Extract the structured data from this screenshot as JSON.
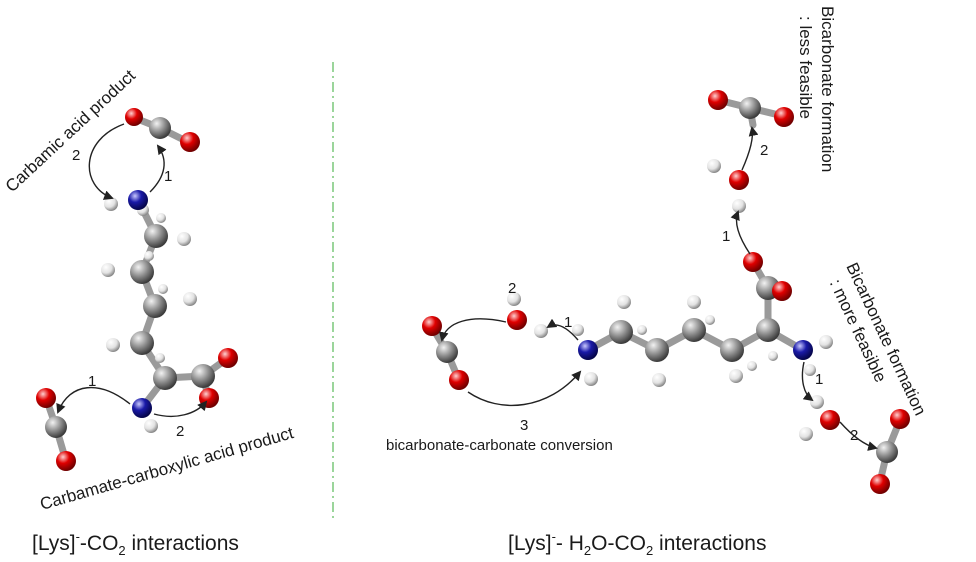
{
  "left": {
    "carbamic_label": "Carbamic acid product",
    "carbamate_label": "Carbamate-carboxylic acid product",
    "step1": "1",
    "step2": "2",
    "step1b": "1",
    "step2b": "2",
    "caption_main": "[Lys]",
    "caption_sup": "-",
    "caption_mid": "-CO",
    "caption_sub": "2",
    "caption_end": " interactions"
  },
  "right": {
    "less_line1": "Bicarbonate formation",
    "less_line2": ": less feasible",
    "more_line1": "Bicarbonate formation",
    "more_line2": ": more feasible",
    "conversion_label": "bicarbonate-carbonate conversion",
    "step_top1": "1",
    "step_top2": "2",
    "step_left1": "1",
    "step_left2": "2",
    "step_left3": "3",
    "step_right1": "1",
    "step_right2": "2",
    "caption_main": "[Lys]",
    "caption_sup": "-",
    "caption_mid": "- H",
    "caption_sub1": "2",
    "caption_mid2": "O-CO",
    "caption_sub2": "2",
    "caption_end": " interactions"
  },
  "colors": {
    "carbon": "#8c8c8c",
    "oxygen": "#e00000",
    "nitrogen": "#1a1aa8",
    "hydrogen": "#e8e8e8",
    "divider": "#7ac77a"
  }
}
